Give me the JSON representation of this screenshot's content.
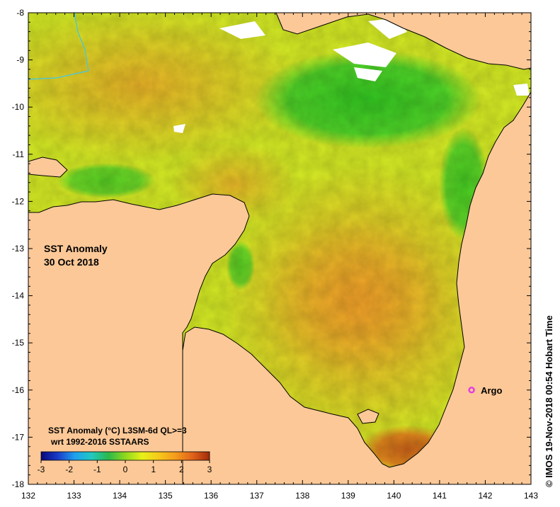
{
  "map": {
    "title_line1": "SST Anomaly",
    "title_line2": "30 Oct 2018",
    "credit": "© IMOS 19-Nov-2018 00:54 Hobart Time",
    "x_ticks": [
      "132",
      "133",
      "134",
      "135",
      "136",
      "137",
      "138",
      "139",
      "140",
      "141",
      "142",
      "143"
    ],
    "y_ticks": [
      "-8",
      "-9",
      "-10",
      "-11",
      "-12",
      "-13",
      "-14",
      "-15",
      "-16",
      "-17",
      "-18"
    ],
    "marker": {
      "label": "Argo",
      "lon": 141.7,
      "lat": -16.0,
      "color": "#e040e0"
    },
    "legend": {
      "title_line1": "SST Anomaly (°C) L3SM-6d QL>=3",
      "title_line2": "wrt 1992-2016 SSTAARS",
      "ticks": [
        "-3",
        "-2",
        "-1",
        "0",
        "1",
        "2",
        "3"
      ],
      "colors": [
        "#08087a",
        "#1a3cc8",
        "#1ea0f0",
        "#21c8c0",
        "#2cb84a",
        "#8ed81e",
        "#e8f018",
        "#f7c81a",
        "#f49a1c",
        "#e0621a",
        "#a02a0a"
      ]
    },
    "colors": {
      "land": "#fcc897",
      "sea_warm": "#f1b028",
      "sea_neutral": "#d8ec22",
      "sea_cool": "#22c020"
    }
  }
}
